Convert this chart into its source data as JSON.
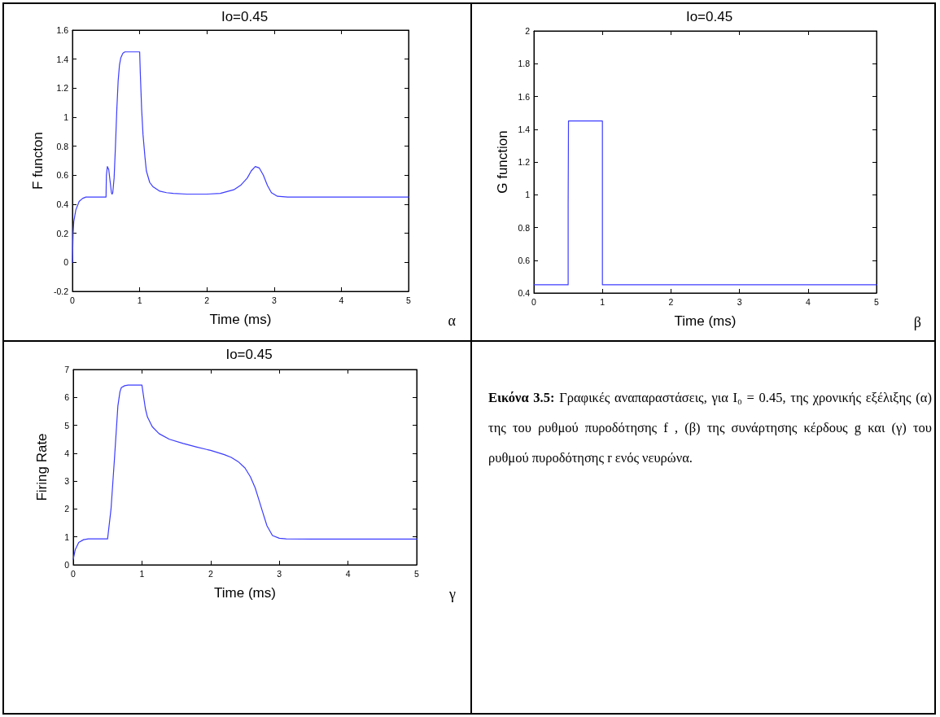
{
  "chart_data": [
    {
      "type": "line",
      "title": "Io=0.45",
      "xlabel": "Time (ms)",
      "ylabel": "F functon",
      "annotations": [
        "α"
      ],
      "xlim": [
        0,
        5
      ],
      "xticks": [
        0,
        1,
        2,
        3,
        4,
        5
      ],
      "ylim": [
        -0.2,
        1.6
      ],
      "yticks": [
        -0.2,
        0,
        0.2,
        0.4,
        0.6,
        0.8,
        1,
        1.2,
        1.4,
        1.6
      ],
      "grid": false,
      "marker": "none",
      "line_style": "solid",
      "series": [
        {
          "color": "#3c3cff",
          "x": [
            0,
            0.01,
            0.02,
            0.05,
            0.1,
            0.15,
            0.2,
            0.3,
            0.5,
            0.505,
            0.52,
            0.54,
            0.56,
            0.58,
            0.59,
            0.6,
            0.62,
            0.64,
            0.66,
            0.68,
            0.7,
            0.72,
            0.75,
            0.78,
            0.82,
            0.9,
            1,
            1.01,
            1.03,
            1.05,
            1.08,
            1.1,
            1.15,
            1.2,
            1.3,
            1.4,
            1.5,
            1.7,
            2,
            2.2,
            2.4,
            2.5,
            2.6,
            2.66,
            2.72,
            2.78,
            2.84,
            2.9,
            2.96,
            3.05,
            3.2,
            3.5,
            4,
            5
          ],
          "values": [
            0,
            0.2,
            0.28,
            0.36,
            0.42,
            0.44,
            0.45,
            0.45,
            0.45,
            0.6,
            0.66,
            0.64,
            0.56,
            0.48,
            0.47,
            0.48,
            0.58,
            0.8,
            1.05,
            1.25,
            1.36,
            1.41,
            1.44,
            1.45,
            1.45,
            1.45,
            1.45,
            1.3,
            1.05,
            0.88,
            0.72,
            0.63,
            0.55,
            0.52,
            0.49,
            0.48,
            0.475,
            0.47,
            0.47,
            0.475,
            0.5,
            0.53,
            0.58,
            0.63,
            0.66,
            0.65,
            0.6,
            0.53,
            0.48,
            0.455,
            0.45,
            0.45,
            0.45,
            0.45
          ]
        }
      ]
    },
    {
      "type": "line",
      "title": "Io=0.45",
      "xlabel": "Time (ms)",
      "ylabel": "G function",
      "annotations": [
        "β"
      ],
      "xlim": [
        0,
        5
      ],
      "xticks": [
        0,
        1,
        2,
        3,
        4,
        5
      ],
      "ylim": [
        0.4,
        2
      ],
      "yticks": [
        0.4,
        0.6,
        0.8,
        1,
        1.2,
        1.4,
        1.6,
        1.8,
        2
      ],
      "grid": false,
      "marker": "none",
      "line_style": "solid",
      "series": [
        {
          "color": "#3c3cff",
          "x": [
            0,
            0.5,
            0.5,
            0.505,
            0.505,
            1,
            1,
            5
          ],
          "values": [
            0.45,
            0.45,
            0.94,
            0.94,
            1.45,
            1.45,
            0.45,
            0.45
          ]
        }
      ]
    },
    {
      "type": "line",
      "title": "Io=0.45",
      "xlabel": "Time (ms)",
      "ylabel": "Firing Rate",
      "annotations": [
        "γ"
      ],
      "xlim": [
        0,
        5
      ],
      "xticks": [
        0,
        1,
        2,
        3,
        4,
        5
      ],
      "ylim": [
        0,
        7
      ],
      "yticks": [
        0,
        1,
        2,
        3,
        4,
        5,
        6,
        7
      ],
      "grid": false,
      "marker": "none",
      "line_style": "solid",
      "series": [
        {
          "color": "#3c3cff",
          "x": [
            0,
            0.03,
            0.08,
            0.15,
            0.22,
            0.35,
            0.5,
            0.55,
            0.6,
            0.65,
            0.68,
            0.7,
            0.75,
            0.8,
            0.9,
            1,
            1.02,
            1.05,
            1.08,
            1.15,
            1.25,
            1.4,
            1.6,
            1.8,
            2,
            2.2,
            2.3,
            2.4,
            2.5,
            2.58,
            2.65,
            2.7,
            2.75,
            2.82,
            2.9,
            3,
            3.1,
            3.5,
            4,
            5
          ],
          "values": [
            0.2,
            0.55,
            0.8,
            0.9,
            0.93,
            0.93,
            0.93,
            2,
            3.8,
            5.7,
            6.2,
            6.35,
            6.42,
            6.44,
            6.44,
            6.44,
            6.1,
            5.6,
            5.3,
            4.95,
            4.7,
            4.5,
            4.35,
            4.22,
            4.1,
            3.95,
            3.85,
            3.7,
            3.47,
            3.15,
            2.75,
            2.35,
            1.95,
            1.4,
            1.05,
            0.95,
            0.93,
            0.92,
            0.92,
            0.92
          ]
        }
      ]
    },
    {
      "type": "other",
      "title": "Εικόνα 3.5:",
      "annotations": [
        "Γραφικές αναπαραστάσεις, για I₀ = 0.45, της χρονικής εξέλιξης (α) της του ρυθμού πυροδότησης f , (β) της συνάρτησης κέρδους g και (γ) του ρυθμού πυροδότησης r ενός νευρώνα."
      ]
    }
  ]
}
